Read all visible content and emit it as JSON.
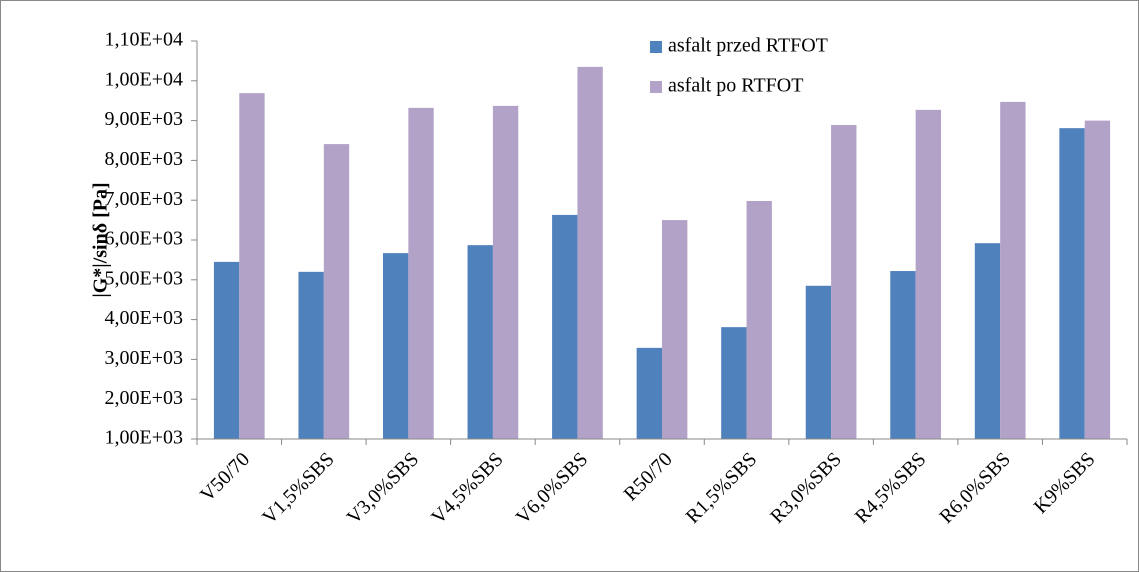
{
  "chart_data": {
    "type": "bar",
    "ylabel": "|G*|/sinδ [Pa]",
    "categories": [
      "V50/70",
      "V1,5%SBS",
      "V3,0%SBS",
      "V4,5%SBS",
      "V6,0%SBS",
      "R50/70",
      "R1,5%SBS",
      "R3,0%SBS",
      "R4,5%SBS",
      "R6,0%SBS",
      "K9%SBS"
    ],
    "series": [
      {
        "name": "asfalt przed RTFOT",
        "color": "#4f81bd",
        "values": [
          5450,
          5200,
          5670,
          5870,
          6630,
          3290,
          3810,
          4850,
          5220,
          5920,
          8810
        ]
      },
      {
        "name": "asfalt po RTFOT",
        "color": "#b3a2c7",
        "values": [
          9690,
          8410,
          9320,
          9370,
          10350,
          6500,
          6980,
          8890,
          9270,
          9470,
          9000
        ]
      }
    ],
    "ylim": [
      1000,
      11000
    ],
    "yticks": [
      {
        "value": 1000,
        "label": "1,00E+03"
      },
      {
        "value": 2000,
        "label": "2,00E+03"
      },
      {
        "value": 3000,
        "label": "3,00E+03"
      },
      {
        "value": 4000,
        "label": "4,00E+03"
      },
      {
        "value": 5000,
        "label": "5,00E+03"
      },
      {
        "value": 6000,
        "label": "6,00E+03"
      },
      {
        "value": 7000,
        "label": "7,00E+03"
      },
      {
        "value": 8000,
        "label": "8,00E+03"
      },
      {
        "value": 9000,
        "label": "9,00E+03"
      },
      {
        "value": 10000,
        "label": "1,00E+04"
      },
      {
        "value": 11000,
        "label": "1,10E+04"
      }
    ],
    "legend": "top-right"
  }
}
